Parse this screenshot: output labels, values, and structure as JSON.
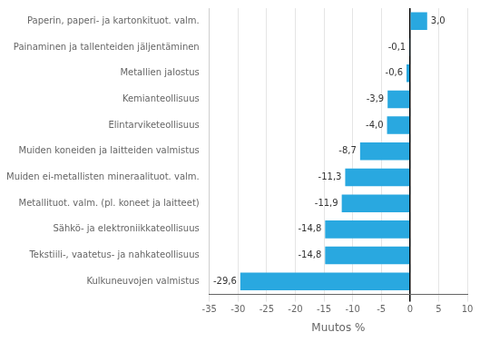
{
  "chart_data": {
    "type": "bar",
    "orientation": "horizontal",
    "categories": [
      "Kulkuneuvojen valmistus",
      "Tekstiili-, vaatetus- ja nahkateollisuus",
      "Sähkö- ja elektroniikkateollisuus",
      "Metallituot. valm. (pl. koneet ja laitteet)",
      "Muiden ei-metallisten mineraalituot. valm.",
      "Muiden koneiden ja laitteiden valmistus",
      "Elintarviketeollisuus",
      "Kemianteollisuus",
      "Metallien jalostus",
      "Painaminen ja tallenteiden jäljentäminen",
      "Paperin, paperi- ja kartonkituot. valm."
    ],
    "values": [
      -29.6,
      -14.8,
      -14.8,
      -11.9,
      -11.3,
      -8.7,
      -4.0,
      -3.9,
      -0.6,
      -0.1,
      3.0
    ],
    "value_labels": [
      "-29,6",
      "-14,8",
      "-14,8",
      "-11,9",
      "-11,3",
      "-8,7",
      "-4,0",
      "-3,9",
      "-0,6",
      "-0,1",
      "3,0"
    ],
    "data_labels": true,
    "color": "#29a8e0",
    "xlabel": "Muutos %",
    "xlim": [
      -35,
      10
    ],
    "xticks": [
      -35,
      -30,
      -25,
      -20,
      -15,
      -10,
      -5,
      0,
      5,
      10
    ],
    "grid": true
  }
}
